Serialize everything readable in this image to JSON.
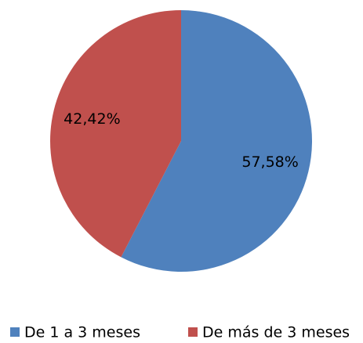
{
  "chart_data": {
    "type": "pie",
    "categories": [
      "De 1 a 3 meses",
      "De más de 3 meses"
    ],
    "values": [
      57.58,
      42.42
    ],
    "value_labels": [
      "57,58%",
      "42,42%"
    ],
    "colors": [
      "#4f81bd",
      "#c0504d"
    ],
    "legend": "bottom"
  }
}
